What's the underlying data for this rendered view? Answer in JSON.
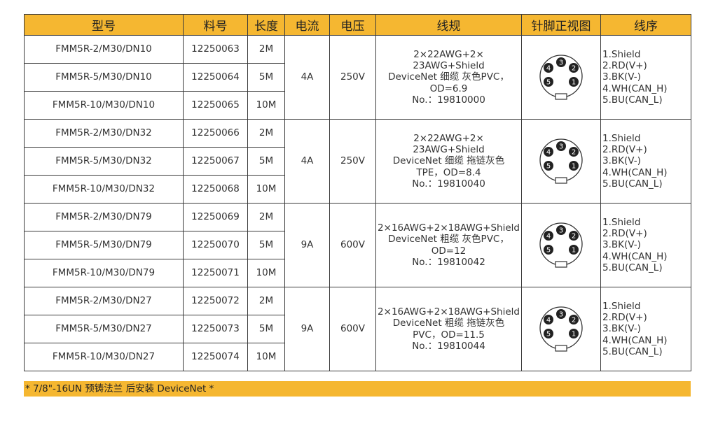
{
  "headers": [
    "型号",
    "料号",
    "长度",
    "电流",
    "电压",
    "线规",
    "针脚正视图",
    "线序"
  ],
  "groups": [
    {
      "rows": [
        {
          "model": "FMM5R-2/M30/DN10",
          "part": "12250063",
          "length": "2M"
        },
        {
          "model": "FMM5R-5/M30/DN10",
          "part": "12250064",
          "length": "5M"
        },
        {
          "model": "FMM5R-10/M30/DN10",
          "part": "12250065",
          "length": "10M"
        }
      ],
      "current": "4A",
      "voltage": "250V",
      "spec_lines": [
        "2×22AWG+2×",
        "23AWG+Shield",
        "DeviceNet 细缆 灰色PVC，",
        "OD=6.9",
        "No.：19810000"
      ],
      "pins": [
        "1.Shield",
        "2.RD(V+)",
        "3.BK(V-)",
        "4.WH(CAN_H)",
        "5.BU(CAN_L)"
      ]
    },
    {
      "rows": [
        {
          "model": "FMM5R-2/M30/DN32",
          "part": "12250066",
          "length": "2M"
        },
        {
          "model": "FMM5R-5/M30/DN32",
          "part": "12250067",
          "length": "5M"
        },
        {
          "model": "FMM5R-10/M30/DN32",
          "part": "12250068",
          "length": "10M"
        }
      ],
      "current": "4A",
      "voltage": "250V",
      "spec_lines": [
        "2×22AWG+2×",
        "23AWG+Shield",
        "DeviceNet 细缆 拖链灰色",
        "TPE，OD=8.4",
        "No.：19810040"
      ],
      "pins": [
        "1.Shield",
        "2.RD(V+)",
        "3.BK(V-)",
        "4.WH(CAN_H)",
        "5.BU(CAN_L)"
      ]
    },
    {
      "rows": [
        {
          "model": "FMM5R-2/M30/DN79",
          "part": "12250069",
          "length": "2M"
        },
        {
          "model": "FMM5R-5/M30/DN79",
          "part": "12250070",
          "length": "5M"
        },
        {
          "model": "FMM5R-10/M30/DN79",
          "part": "12250071",
          "length": "10M"
        }
      ],
      "current": "9A",
      "voltage": "600V",
      "spec_lines": [
        "2×16AWG+2×18AWG+Shield",
        "DeviceNet 粗缆 灰色PVC，",
        "OD=12",
        "No.：19810042"
      ],
      "pins": [
        "1.Shield",
        "2.RD(V+)",
        "3.BK(V-)",
        "4.WH(CAN_H)",
        "5.BU(CAN_L)"
      ]
    },
    {
      "rows": [
        {
          "model": "FMM5R-2/M30/DN27",
          "part": "12250072",
          "length": "2M"
        },
        {
          "model": "FMM5R-5/M30/DN27",
          "part": "12250073",
          "length": "5M"
        },
        {
          "model": "FMM5R-10/M30/DN27",
          "part": "12250074",
          "length": "10M"
        }
      ],
      "current": "9A",
      "voltage": "600V",
      "spec_lines": [
        "2×16AWG+2×18AWG+Shield",
        "DeviceNet 粗缆 拖链灰色",
        "PVC，OD=11.5",
        "No.：19810044"
      ],
      "pins": [
        "1.Shield",
        "2.RD(V+)",
        "3.BK(V-)",
        "4.WH(CAN_H)",
        "5.BU(CAN_L)"
      ]
    }
  ],
  "pin_numbers": [
    "4",
    "3",
    "2",
    "5",
    "1"
  ],
  "footer": "* 7/8\"-16UN 预铸法兰 后安装 DeviceNet *",
  "colors": {
    "header_bg": "#f5b731",
    "border": "#3a3a3a"
  }
}
